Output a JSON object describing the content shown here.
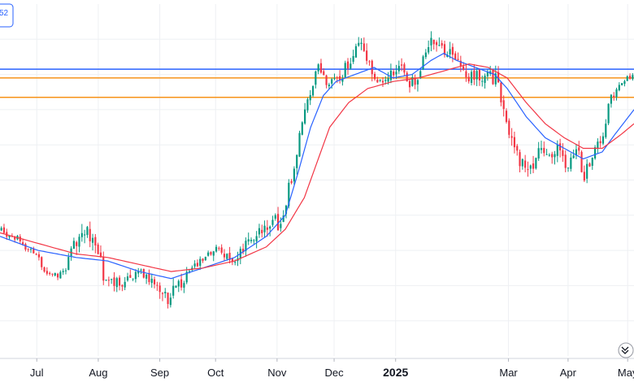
{
  "badge": {
    "text": "52"
  },
  "colors": {
    "up": "#089981",
    "down": "#f23645",
    "ma_fast": "#2962ff",
    "ma_slow": "#f23645",
    "hline_blue": "#2962ff",
    "hline_orange": "#f7931a",
    "grid": "#eef0f3",
    "axis_text": "#131722"
  },
  "chart_data": {
    "type": "candlestick",
    "title": "",
    "xlabel": "",
    "ylabel": "",
    "ylim": [
      0,
      100
    ],
    "grid": true,
    "legend": "none",
    "x_ticks": [
      {
        "label": "Jul",
        "t": 0.058,
        "bold": false
      },
      {
        "label": "Aug",
        "t": 0.155,
        "bold": false
      },
      {
        "label": "Sep",
        "t": 0.252,
        "bold": false
      },
      {
        "label": "Oct",
        "t": 0.34,
        "bold": false
      },
      {
        "label": "Nov",
        "t": 0.437,
        "bold": false
      },
      {
        "label": "Dec",
        "t": 0.527,
        "bold": false
      },
      {
        "label": "2025",
        "t": 0.624,
        "bold": true
      },
      {
        "label": "Mar",
        "t": 0.802,
        "bold": false
      },
      {
        "label": "Apr",
        "t": 0.896,
        "bold": false
      },
      {
        "label": "May",
        "t": 0.99,
        "bold": false
      }
    ],
    "horizontal_lines": [
      {
        "value": 81.5,
        "color_key": "hline_blue"
      },
      {
        "value": 79.0,
        "color_key": "hline_orange"
      },
      {
        "value": 73.5,
        "color_key": "hline_orange"
      }
    ],
    "anchors": [
      [
        0.0,
        36
      ],
      [
        0.03,
        33
      ],
      [
        0.06,
        28
      ],
      [
        0.08,
        22
      ],
      [
        0.1,
        24
      ],
      [
        0.12,
        32
      ],
      [
        0.145,
        35
      ],
      [
        0.165,
        22
      ],
      [
        0.19,
        20
      ],
      [
        0.22,
        24
      ],
      [
        0.245,
        20
      ],
      [
        0.265,
        17
      ],
      [
        0.285,
        20
      ],
      [
        0.305,
        26
      ],
      [
        0.325,
        28
      ],
      [
        0.345,
        30
      ],
      [
        0.37,
        26
      ],
      [
        0.395,
        33
      ],
      [
        0.42,
        38
      ],
      [
        0.44,
        38
      ],
      [
        0.455,
        47
      ],
      [
        0.47,
        60
      ],
      [
        0.485,
        72
      ],
      [
        0.5,
        82
      ],
      [
        0.51,
        79
      ],
      [
        0.525,
        77
      ],
      [
        0.54,
        80
      ],
      [
        0.555,
        85
      ],
      [
        0.57,
        90
      ],
      [
        0.585,
        82
      ],
      [
        0.6,
        78
      ],
      [
        0.615,
        80
      ],
      [
        0.63,
        83
      ],
      [
        0.645,
        77
      ],
      [
        0.66,
        78
      ],
      [
        0.675,
        88
      ],
      [
        0.69,
        90
      ],
      [
        0.705,
        86
      ],
      [
        0.72,
        84
      ],
      [
        0.735,
        80
      ],
      [
        0.75,
        79
      ],
      [
        0.77,
        80
      ],
      [
        0.785,
        78
      ],
      [
        0.8,
        66
      ],
      [
        0.815,
        57
      ],
      [
        0.83,
        52
      ],
      [
        0.845,
        56
      ],
      [
        0.86,
        59
      ],
      [
        0.88,
        58
      ],
      [
        0.895,
        54
      ],
      [
        0.91,
        60
      ],
      [
        0.92,
        50
      ],
      [
        0.935,
        58
      ],
      [
        0.95,
        61
      ],
      [
        0.96,
        72
      ],
      [
        0.975,
        76
      ],
      [
        0.99,
        79
      ],
      [
        1.0,
        80
      ]
    ],
    "bands": [
      [
        0.0,
        10
      ],
      [
        0.1,
        10
      ],
      [
        0.13,
        30
      ],
      [
        0.17,
        16
      ],
      [
        0.24,
        14
      ],
      [
        0.265,
        22
      ],
      [
        0.3,
        12
      ],
      [
        0.44,
        22
      ],
      [
        0.5,
        14
      ],
      [
        0.58,
        20
      ],
      [
        0.64,
        18
      ],
      [
        0.69,
        22
      ],
      [
        0.74,
        18
      ],
      [
        0.8,
        22
      ],
      [
        0.83,
        20
      ],
      [
        0.92,
        18
      ],
      [
        0.96,
        12
      ],
      [
        1.0,
        6
      ]
    ],
    "ma_fast": {
      "period": 10,
      "points": [
        [
          0.0,
          34
        ],
        [
          0.06,
          30
        ],
        [
          0.12,
          28
        ],
        [
          0.17,
          27
        ],
        [
          0.22,
          24
        ],
        [
          0.27,
          22
        ],
        [
          0.32,
          25
        ],
        [
          0.37,
          28
        ],
        [
          0.42,
          34
        ],
        [
          0.45,
          40
        ],
        [
          0.47,
          52
        ],
        [
          0.49,
          65
        ],
        [
          0.51,
          74
        ],
        [
          0.53,
          78
        ],
        [
          0.56,
          80
        ],
        [
          0.59,
          82
        ],
        [
          0.62,
          79
        ],
        [
          0.65,
          80
        ],
        [
          0.68,
          84
        ],
        [
          0.7,
          86
        ],
        [
          0.72,
          84
        ],
        [
          0.75,
          82
        ],
        [
          0.78,
          80
        ],
        [
          0.8,
          76
        ],
        [
          0.83,
          68
        ],
        [
          0.86,
          62
        ],
        [
          0.89,
          59
        ],
        [
          0.92,
          56
        ],
        [
          0.95,
          58
        ],
        [
          0.97,
          63
        ],
        [
          1.0,
          70
        ]
      ]
    },
    "ma_slow": {
      "period": 20,
      "points": [
        [
          0.0,
          35
        ],
        [
          0.06,
          32
        ],
        [
          0.12,
          29
        ],
        [
          0.17,
          28
        ],
        [
          0.22,
          26
        ],
        [
          0.27,
          24
        ],
        [
          0.32,
          25
        ],
        [
          0.37,
          27
        ],
        [
          0.42,
          31
        ],
        [
          0.45,
          36
        ],
        [
          0.48,
          45
        ],
        [
          0.5,
          55
        ],
        [
          0.52,
          65
        ],
        [
          0.55,
          72
        ],
        [
          0.58,
          76
        ],
        [
          0.62,
          78
        ],
        [
          0.66,
          79
        ],
        [
          0.7,
          81
        ],
        [
          0.74,
          83
        ],
        [
          0.77,
          82
        ],
        [
          0.8,
          79
        ],
        [
          0.83,
          72
        ],
        [
          0.86,
          66
        ],
        [
          0.89,
          62
        ],
        [
          0.92,
          59
        ],
        [
          0.95,
          59
        ],
        [
          0.98,
          63
        ],
        [
          1.0,
          66
        ]
      ]
    }
  }
}
